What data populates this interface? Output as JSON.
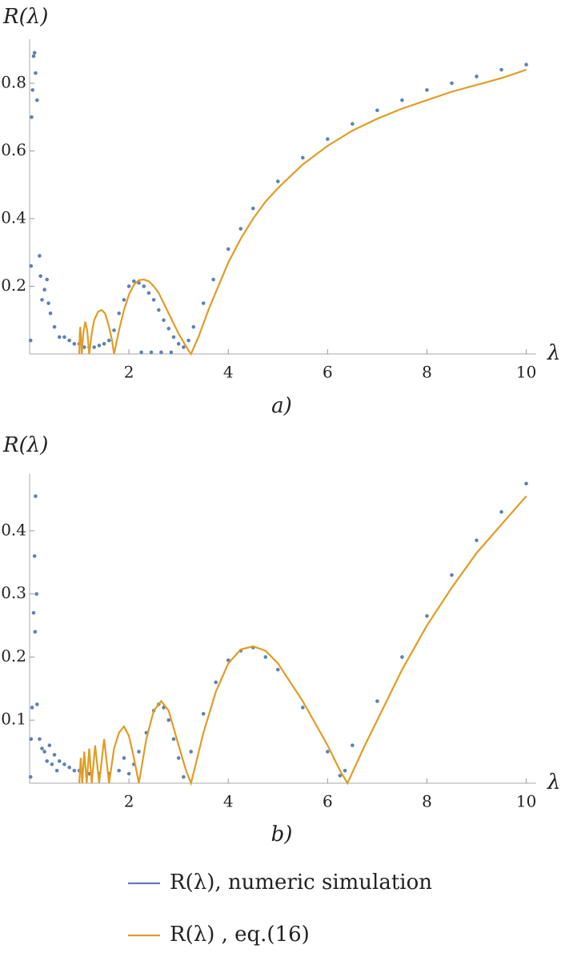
{
  "chart_data": [
    {
      "type": "scatter",
      "ylabel": "R(λ)",
      "xlabel": "λ",
      "caption": "a)",
      "xlim": [
        0,
        10.2
      ],
      "ylim": [
        0,
        0.93
      ],
      "xticks": [
        2,
        4,
        6,
        8,
        10
      ],
      "yticks": [
        0.2,
        0.4,
        0.6,
        0.8
      ],
      "series": [
        {
          "mode": "markers",
          "color": "#5e81b5",
          "x": [
            0.02,
            0.03,
            0.04,
            0.06,
            0.08,
            0.1,
            0.12,
            0.15,
            0.2,
            0.22,
            0.25,
            0.3,
            0.35,
            0.38,
            0.42,
            0.5,
            0.6,
            0.7,
            0.8,
            0.9,
            1.0,
            1.1,
            1.2,
            1.3,
            1.4,
            1.5,
            1.6,
            1.7,
            1.8,
            1.9,
            2.0,
            2.1,
            2.2,
            2.3,
            2.4,
            2.5,
            2.6,
            2.7,
            2.8,
            2.9,
            3.0,
            3.1,
            3.2,
            3.3,
            3.5,
            3.7,
            4.0,
            4.25,
            4.5,
            5,
            5.5,
            6,
            6.5,
            7,
            7.5,
            8,
            8.5,
            9,
            9.5,
            10,
            2.25,
            2.45,
            2.65,
            2.85
          ],
          "values": [
            0.04,
            0.26,
            0.7,
            0.78,
            0.88,
            0.89,
            0.83,
            0.75,
            0.29,
            0.23,
            0.16,
            0.19,
            0.22,
            0.15,
            0.12,
            0.08,
            0.05,
            0.05,
            0.04,
            0.03,
            0.03,
            0.02,
            0.02,
            0.02,
            0.025,
            0.03,
            0.04,
            0.07,
            0.12,
            0.16,
            0.2,
            0.215,
            0.21,
            0.2,
            0.18,
            0.16,
            0.13,
            0.1,
            0.075,
            0.05,
            0.03,
            0.02,
            0.04,
            0.08,
            0.15,
            0.22,
            0.31,
            0.37,
            0.43,
            0.51,
            0.58,
            0.635,
            0.68,
            0.72,
            0.75,
            0.78,
            0.8,
            0.82,
            0.84,
            0.855,
            0.005,
            0.005,
            0.005,
            0.005
          ]
        },
        {
          "mode": "lines",
          "color": "#e19c24",
          "x": [
            1.0,
            1.01,
            1.02,
            1.03,
            1.05,
            1.08,
            1.12,
            1.16,
            1.2,
            1.25,
            1.3,
            1.38,
            1.45,
            1.52,
            1.6,
            1.66,
            1.7,
            1.8,
            1.9,
            2.0,
            2.1,
            2.2,
            2.3,
            2.4,
            2.5,
            2.6,
            2.7,
            2.8,
            2.9,
            3.0,
            3.1,
            3.2,
            3.25,
            3.4,
            3.6,
            3.8,
            4.0,
            4.25,
            4.5,
            4.75,
            5,
            5.5,
            6,
            6.5,
            7,
            7.5,
            8,
            8.5,
            9,
            9.5,
            10
          ],
          "values": [
            0,
            0.06,
            0.08,
            0.06,
            0,
            0.06,
            0.095,
            0.07,
            0,
            0.06,
            0.1,
            0.125,
            0.13,
            0.12,
            0.08,
            0.04,
            0,
            0.07,
            0.13,
            0.175,
            0.205,
            0.218,
            0.22,
            0.215,
            0.2,
            0.18,
            0.15,
            0.12,
            0.09,
            0.06,
            0.035,
            0.01,
            0,
            0.05,
            0.13,
            0.2,
            0.27,
            0.34,
            0.4,
            0.45,
            0.49,
            0.56,
            0.615,
            0.66,
            0.695,
            0.725,
            0.75,
            0.775,
            0.795,
            0.815,
            0.84
          ]
        }
      ]
    },
    {
      "type": "scatter",
      "ylabel": "R(λ)",
      "xlabel": "λ",
      "caption": "b)",
      "xlim": [
        0,
        10.2
      ],
      "ylim": [
        0,
        0.49
      ],
      "xticks": [
        2,
        4,
        6,
        8,
        10
      ],
      "yticks": [
        0.1,
        0.2,
        0.3,
        0.4
      ],
      "series": [
        {
          "name": "R(λ), numeric simulation",
          "mode": "markers",
          "color": "#5e81b5",
          "x": [
            0.02,
            0.03,
            0.05,
            0.08,
            0.1,
            0.12,
            0.14,
            0.11,
            0.15,
            0.2,
            0.25,
            0.3,
            0.35,
            0.4,
            0.45,
            0.5,
            0.55,
            0.6,
            0.7,
            0.8,
            0.9,
            1.0,
            1.2,
            1.4,
            1.6,
            1.8,
            1.9,
            2.0,
            2.1,
            2.2,
            2.35,
            2.5,
            2.6,
            2.7,
            2.8,
            2.9,
            3.0,
            3.1,
            3.25,
            3.5,
            3.75,
            4.0,
            4.25,
            4.5,
            4.75,
            5.0,
            5.5,
            6.0,
            6.25,
            6.35,
            6.5,
            7.0,
            7.5,
            8.0,
            8.5,
            9.0,
            9.5,
            10
          ],
          "values": [
            0.01,
            0.07,
            0.12,
            0.27,
            0.36,
            0.455,
            0.3,
            0.24,
            0.125,
            0.07,
            0.055,
            0.05,
            0.035,
            0.06,
            0.03,
            0.045,
            0.02,
            0.035,
            0.03,
            0.025,
            0.02,
            0.02,
            0.015,
            0.015,
            0.015,
            0.02,
            0.04,
            0.015,
            0.03,
            0.05,
            0.08,
            0.115,
            0.125,
            0.12,
            0.1,
            0.07,
            0.04,
            0.01,
            0.05,
            0.11,
            0.16,
            0.195,
            0.21,
            0.215,
            0.2,
            0.18,
            0.12,
            0.05,
            0.012,
            0.02,
            0.06,
            0.13,
            0.2,
            0.265,
            0.33,
            0.385,
            0.43,
            0.475
          ]
        },
        {
          "name": "R(λ) , eq.(16)",
          "mode": "lines",
          "color": "#e19c24",
          "x": [
            1.0,
            1.03,
            1.06,
            1.1,
            1.15,
            1.2,
            1.25,
            1.32,
            1.4,
            1.5,
            1.6,
            1.7,
            1.8,
            1.9,
            2.0,
            2.1,
            2.2,
            2.35,
            2.5,
            2.65,
            2.8,
            3.0,
            3.15,
            3.25,
            3.5,
            3.75,
            4.0,
            4.25,
            4.5,
            4.75,
            5.0,
            5.5,
            6.0,
            6.25,
            6.4,
            6.75,
            7.0,
            7.5,
            8.0,
            8.5,
            9.0,
            9.5,
            10
          ],
          "values": [
            0,
            0.04,
            0,
            0.05,
            0,
            0.055,
            0,
            0.06,
            0,
            0.07,
            0,
            0.055,
            0.08,
            0.09,
            0.075,
            0.04,
            0,
            0.07,
            0.115,
            0.13,
            0.115,
            0.06,
            0.02,
            0,
            0.08,
            0.145,
            0.19,
            0.212,
            0.217,
            0.21,
            0.19,
            0.13,
            0.06,
            0.02,
            0,
            0.06,
            0.1,
            0.18,
            0.25,
            0.31,
            0.365,
            0.41,
            0.455
          ]
        }
      ]
    }
  ]
}
